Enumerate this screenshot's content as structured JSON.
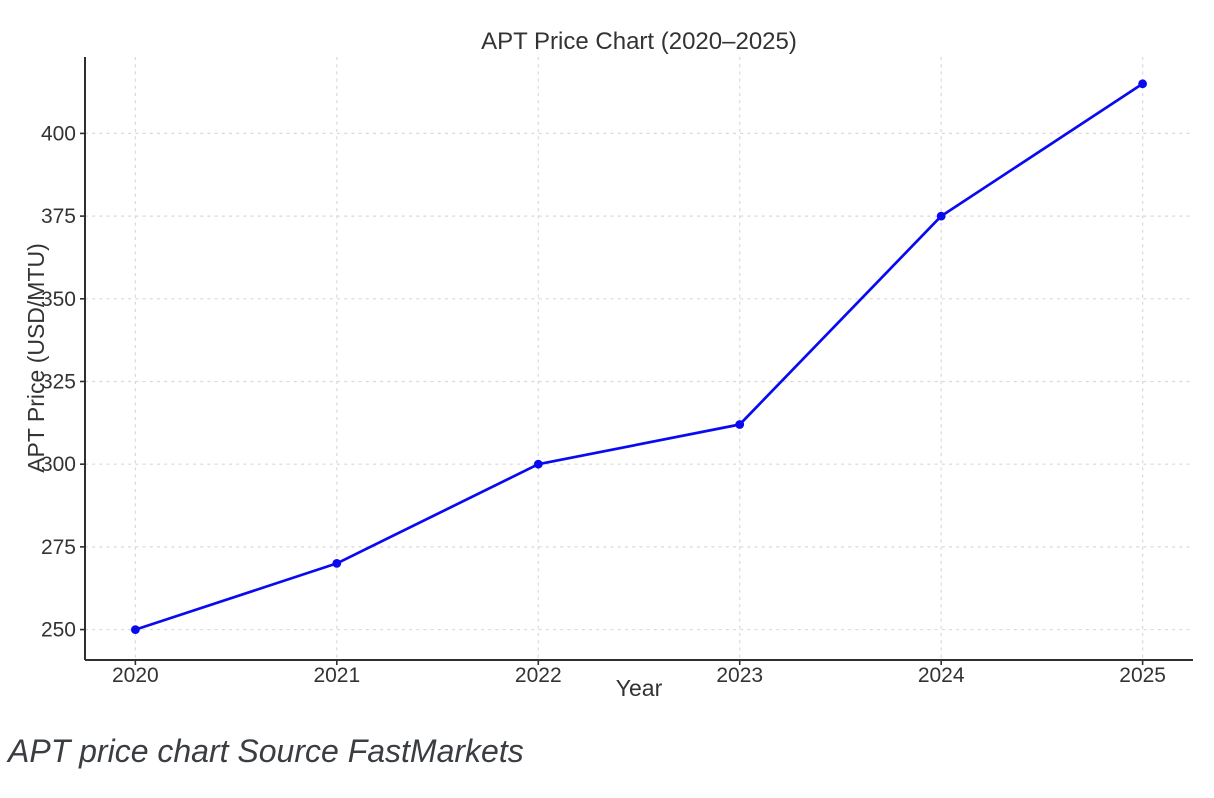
{
  "figure": {
    "caption": "APT price chart Source FastMarkets"
  },
  "chart_data": {
    "type": "line",
    "title": "APT Price Chart (2020–2025)",
    "xlabel": "Year",
    "ylabel": "APT Price (USD/MTU)",
    "series": [
      {
        "name": "APT Price (USD/MTU)",
        "x": [
          2020,
          2021,
          2022,
          2023,
          2024,
          2025
        ],
        "values": [
          250,
          270,
          300,
          312,
          375,
          415
        ]
      }
    ],
    "xticks": [
      2020,
      2021,
      2022,
      2023,
      2024,
      2025
    ],
    "yticks": [
      250,
      275,
      300,
      325,
      350,
      375,
      400
    ],
    "xlim": [
      2019.75,
      2025.25
    ],
    "ylim": [
      240.8,
      423.1
    ],
    "grid": true,
    "grid_style": "dashed",
    "legend": false,
    "spines": [
      "left",
      "bottom"
    ],
    "colors": {
      "line": "#0a0af0",
      "marker": "#0a0af0",
      "grid": "#d9d9d9",
      "axis": "#2f2f2f",
      "text": "#333333",
      "caption": "#3a3d42",
      "background": "#ffffff"
    }
  }
}
